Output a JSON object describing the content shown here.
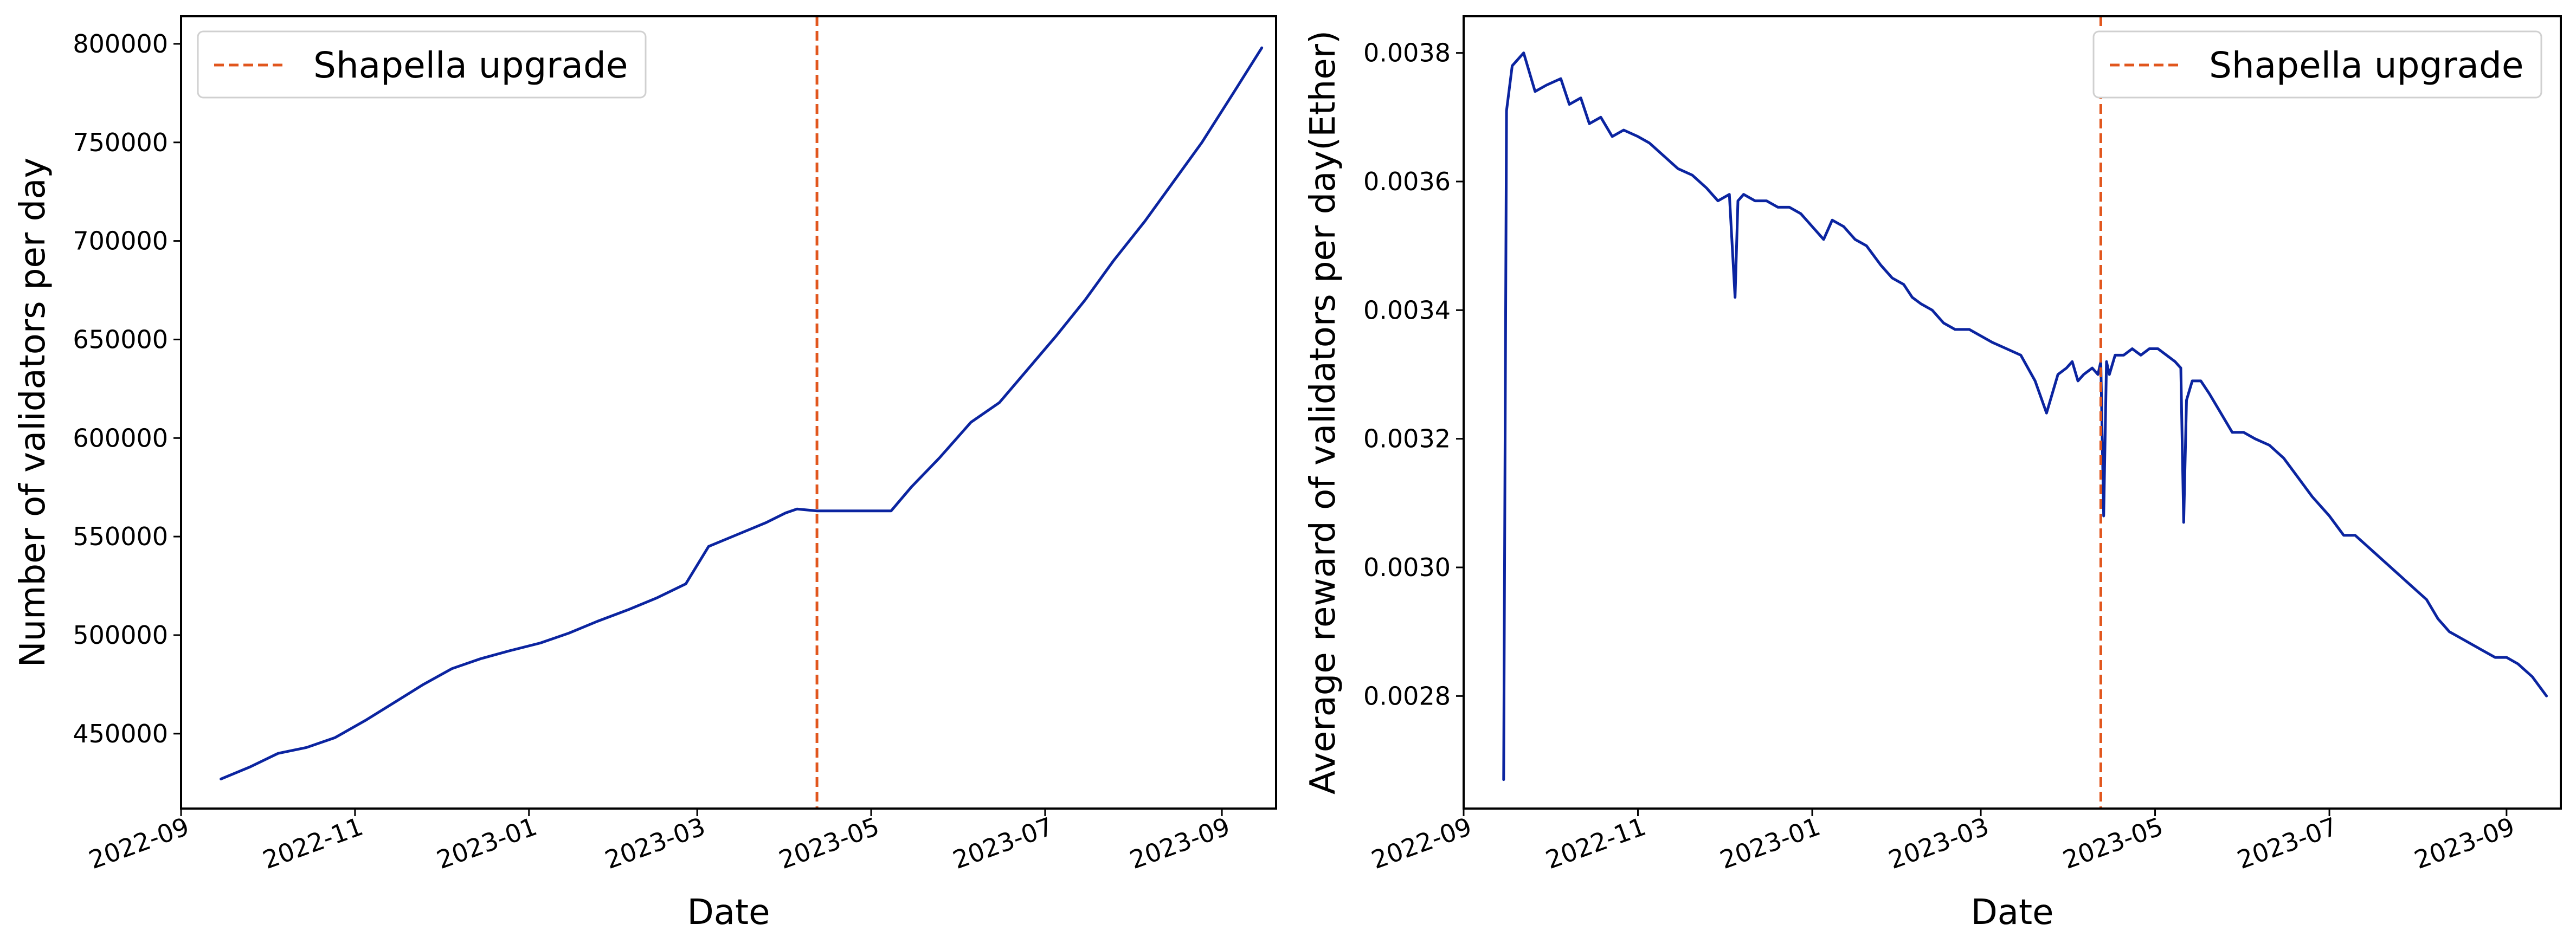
{
  "colors": {
    "series": "#0b24a0",
    "event_line": "#e1561d"
  },
  "chart_data": [
    {
      "type": "line",
      "title": "",
      "xlabel": "Date",
      "ylabel": "Number of validators per day",
      "xlim": [
        "2022-09-01",
        "2023-09-20"
      ],
      "ylim": [
        412000,
        814000
      ],
      "x_ticks": [
        "2022-09",
        "2022-11",
        "2023-01",
        "2023-03",
        "2023-05",
        "2023-07",
        "2023-09"
      ],
      "y_ticks": [
        450000,
        500000,
        550000,
        600000,
        650000,
        700000,
        750000,
        800000
      ],
      "y_tick_labels": [
        "450000",
        "500000",
        "550000",
        "600000",
        "650000",
        "700000",
        "750000",
        "800000"
      ],
      "legend": {
        "placement": "upper-left",
        "entries": [
          "Shapella upgrade"
        ]
      },
      "grid": false,
      "vertical_line": {
        "date": "2023-04-12",
        "label": "Shapella upgrade",
        "style": "dashed"
      },
      "series": [
        {
          "x": [
            "2022-09-15",
            "2022-09-25",
            "2022-10-05",
            "2022-10-15",
            "2022-10-25",
            "2022-11-05",
            "2022-11-15",
            "2022-11-25",
            "2022-12-05",
            "2022-12-15",
            "2022-12-25",
            "2023-01-05",
            "2023-01-15",
            "2023-01-25",
            "2023-02-05",
            "2023-02-15",
            "2023-02-25",
            "2023-03-05",
            "2023-03-15",
            "2023-03-25",
            "2023-04-01",
            "2023-04-05",
            "2023-04-12",
            "2023-04-20",
            "2023-05-01",
            "2023-05-08",
            "2023-05-15",
            "2023-05-25",
            "2023-06-05",
            "2023-06-15",
            "2023-06-25",
            "2023-07-05",
            "2023-07-15",
            "2023-07-25",
            "2023-08-05",
            "2023-08-15",
            "2023-08-25",
            "2023-09-05",
            "2023-09-15"
          ],
          "values": [
            427000,
            433000,
            440000,
            443000,
            448000,
            457000,
            466000,
            475000,
            483000,
            488000,
            492000,
            496000,
            501000,
            507000,
            513000,
            519000,
            526000,
            545000,
            551000,
            557000,
            562000,
            564000,
            563000,
            563000,
            563000,
            563000,
            575000,
            590000,
            608000,
            618000,
            635000,
            652000,
            670000,
            690000,
            710000,
            730000,
            750000,
            775000,
            798000
          ]
        }
      ]
    },
    {
      "type": "line",
      "title": "",
      "xlabel": "Date",
      "ylabel": "Average reward of validators per day(Ether)",
      "xlim": [
        "2022-09-01",
        "2023-09-20"
      ],
      "ylim": [
        0.002625,
        0.003857
      ],
      "x_ticks": [
        "2022-09",
        "2022-11",
        "2023-01",
        "2023-03",
        "2023-05",
        "2023-07",
        "2023-09"
      ],
      "y_ticks": [
        0.0028,
        0.003,
        0.0032,
        0.0034,
        0.0036,
        0.0038
      ],
      "y_tick_labels": [
        "0.0028",
        "0.0030",
        "0.0032",
        "0.0034",
        "0.0036",
        "0.0038"
      ],
      "legend": {
        "placement": "upper-right",
        "entries": [
          "Shapella upgrade"
        ]
      },
      "grid": false,
      "vertical_line": {
        "date": "2023-04-12",
        "label": "Shapella upgrade",
        "style": "dashed"
      },
      "series": [
        {
          "x": [
            "2022-09-15",
            "2022-09-16",
            "2022-09-18",
            "2022-09-22",
            "2022-09-26",
            "2022-09-30",
            "2022-10-05",
            "2022-10-08",
            "2022-10-12",
            "2022-10-15",
            "2022-10-19",
            "2022-10-23",
            "2022-10-27",
            "2022-11-01",
            "2022-11-05",
            "2022-11-10",
            "2022-11-15",
            "2022-11-20",
            "2022-11-25",
            "2022-11-29",
            "2022-12-03",
            "2022-12-05",
            "2022-12-06",
            "2022-12-08",
            "2022-12-12",
            "2022-12-16",
            "2022-12-20",
            "2022-12-24",
            "2022-12-28",
            "2023-01-01",
            "2023-01-05",
            "2023-01-08",
            "2023-01-12",
            "2023-01-16",
            "2023-01-20",
            "2023-01-25",
            "2023-01-29",
            "2023-02-02",
            "2023-02-05",
            "2023-02-08",
            "2023-02-12",
            "2023-02-16",
            "2023-02-20",
            "2023-02-25",
            "2023-03-01",
            "2023-03-05",
            "2023-03-10",
            "2023-03-15",
            "2023-03-20",
            "2023-03-24",
            "2023-03-28",
            "2023-03-31",
            "2023-04-02",
            "2023-04-04",
            "2023-04-06",
            "2023-04-09",
            "2023-04-11",
            "2023-04-12",
            "2023-04-13",
            "2023-04-14",
            "2023-04-15",
            "2023-04-17",
            "2023-04-20",
            "2023-04-23",
            "2023-04-26",
            "2023-04-29",
            "2023-05-02",
            "2023-05-05",
            "2023-05-08",
            "2023-05-10",
            "2023-05-11",
            "2023-05-12",
            "2023-05-14",
            "2023-05-17",
            "2023-05-20",
            "2023-05-24",
            "2023-05-28",
            "2023-06-01",
            "2023-06-05",
            "2023-06-10",
            "2023-06-15",
            "2023-06-20",
            "2023-06-25",
            "2023-07-01",
            "2023-07-06",
            "2023-07-10",
            "2023-07-15",
            "2023-07-20",
            "2023-07-25",
            "2023-07-30",
            "2023-08-04",
            "2023-08-08",
            "2023-08-12",
            "2023-08-16",
            "2023-08-20",
            "2023-08-24",
            "2023-08-28",
            "2023-09-01",
            "2023-09-05",
            "2023-09-10",
            "2023-09-15"
          ],
          "values": [
            0.00267,
            0.00371,
            0.00378,
            0.0038,
            0.00374,
            0.00375,
            0.00376,
            0.00372,
            0.00373,
            0.00369,
            0.0037,
            0.00367,
            0.00368,
            0.00367,
            0.00366,
            0.00364,
            0.00362,
            0.00361,
            0.00359,
            0.00357,
            0.00358,
            0.00342,
            0.00357,
            0.00358,
            0.00357,
            0.00357,
            0.00356,
            0.00356,
            0.00355,
            0.00353,
            0.00351,
            0.00354,
            0.00353,
            0.00351,
            0.0035,
            0.00347,
            0.00345,
            0.00344,
            0.00342,
            0.00341,
            0.0034,
            0.00338,
            0.00337,
            0.00337,
            0.00336,
            0.00335,
            0.00334,
            0.00333,
            0.00329,
            0.00324,
            0.0033,
            0.00331,
            0.00332,
            0.00329,
            0.0033,
            0.00331,
            0.0033,
            0.00332,
            0.00308,
            0.00332,
            0.0033,
            0.00333,
            0.00333,
            0.00334,
            0.00333,
            0.00334,
            0.00334,
            0.00333,
            0.00332,
            0.00331,
            0.00307,
            0.00326,
            0.00329,
            0.00329,
            0.00327,
            0.00324,
            0.00321,
            0.00321,
            0.0032,
            0.00319,
            0.00317,
            0.00314,
            0.00311,
            0.00308,
            0.00305,
            0.00305,
            0.00303,
            0.00301,
            0.00299,
            0.00297,
            0.00295,
            0.00292,
            0.0029,
            0.00289,
            0.00288,
            0.00287,
            0.00286,
            0.00286,
            0.00285,
            0.00283,
            0.0028
          ]
        }
      ]
    }
  ]
}
